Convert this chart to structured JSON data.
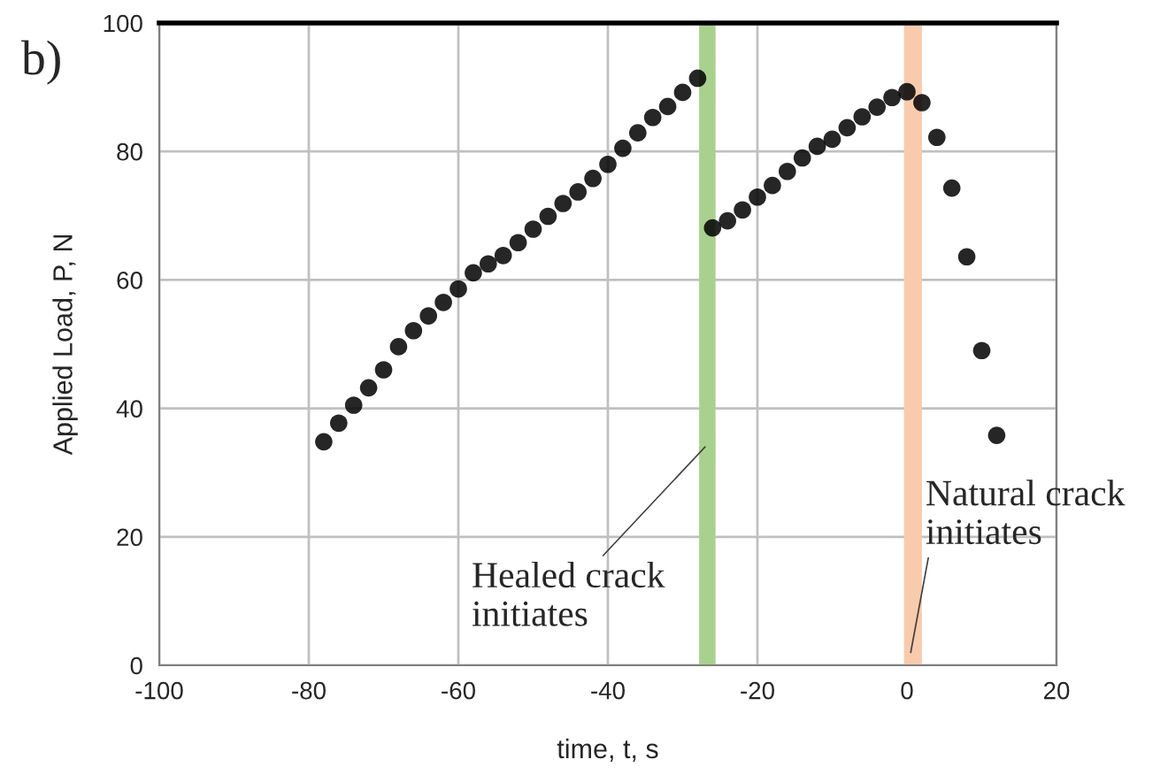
{
  "chart_data": {
    "type": "scatter",
    "xlabel": "time, t, s",
    "ylabel": "Applied Load, P, N",
    "x": [
      -78,
      -76,
      -74,
      -72,
      -70,
      -68,
      -66,
      -64,
      -62,
      -60,
      -58,
      -56,
      -54,
      -52,
      -50,
      -48,
      -46,
      -44,
      -42,
      -40,
      -38,
      -36,
      -34,
      -32,
      -30,
      -28,
      -26,
      -24,
      -22,
      -20,
      -18,
      -16,
      -14,
      -12,
      -10,
      -8,
      -6,
      -4,
      -2,
      0,
      2,
      4,
      6,
      8,
      10,
      12
    ],
    "series": [
      {
        "color": "#000000",
        "values": [
          34.8,
          37.7,
          40.5,
          43.2,
          46.0,
          49.6,
          52.1,
          54.4,
          56.5,
          58.6,
          61.1,
          62.5,
          63.8,
          65.8,
          67.9,
          69.9,
          71.9,
          73.7,
          75.8,
          78.0,
          80.5,
          82.9,
          85.3,
          87.0,
          89.2,
          91.4,
          68.1,
          69.2,
          70.9,
          72.9,
          74.7,
          76.9,
          79.0,
          80.8,
          81.9,
          83.7,
          85.4,
          86.9,
          88.4,
          89.3,
          87.6,
          82.2,
          74.3,
          63.6,
          49.0,
          35.8
        ]
      }
    ],
    "marker": "circle",
    "xlim": [
      -100,
      20
    ],
    "xticks": [
      -100,
      -80,
      -60,
      -40,
      -20,
      0,
      20
    ],
    "ylim": [
      0,
      100
    ],
    "yticks": [
      0,
      20,
      40,
      60,
      80,
      100
    ],
    "grid": true,
    "bands": [
      {
        "axis": "x",
        "from": -27.8,
        "to": -25.6,
        "color": "#a9d18e"
      },
      {
        "axis": "x",
        "from": -0.4,
        "to": 2.0,
        "color": "#f8cbad"
      }
    ],
    "annotations": [
      "b)",
      {
        "text": "Healed crack\ninitiates",
        "x": -27,
        "y": 34
      },
      {
        "text": "Natural crack\ninitiates",
        "x": 0.5,
        "y": 2
      }
    ]
  }
}
